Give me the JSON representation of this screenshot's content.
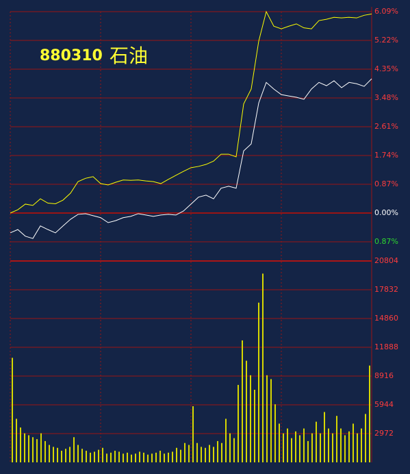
{
  "chart_data": [
    {
      "type": "line",
      "title": "880310",
      "subtitle": "石油",
      "ylim": [
        -0.87,
        6.09
      ],
      "yticks": [
        {
          "value": 6.09,
          "label": "6.09%"
        },
        {
          "value": 5.22,
          "label": "5.22%"
        },
        {
          "value": 4.35,
          "label": "4.35%"
        },
        {
          "value": 3.48,
          "label": "3.48%"
        },
        {
          "value": 2.61,
          "label": "2.61%"
        },
        {
          "value": 1.74,
          "label": "1.74%"
        },
        {
          "value": 0.87,
          "label": "0.87%"
        },
        {
          "value": 0,
          "label": "0.00%"
        },
        {
          "value": -0.87,
          "label": "0.87%"
        }
      ],
      "tick_label_colors": {
        "positive": "#ff3c3c",
        "zero": "#ffffff",
        "negative": "#2ed82e"
      },
      "grid_color": "#9a1414",
      "title_color": "#ffff33",
      "series": [
        {
          "color": "#ffff00",
          "values": [
            0.0,
            0.1,
            0.27,
            0.23,
            0.43,
            0.3,
            0.28,
            0.39,
            0.6,
            0.95,
            1.05,
            1.1,
            0.89,
            0.85,
            0.93,
            1.0,
            0.99,
            1.0,
            0.97,
            0.95,
            0.89,
            1.02,
            1.14,
            1.26,
            1.37,
            1.41,
            1.47,
            1.57,
            1.78,
            1.78,
            1.7,
            3.3,
            3.75,
            5.2,
            6.09,
            5.65,
            5.57,
            5.65,
            5.72,
            5.6,
            5.57,
            5.82,
            5.86,
            5.92,
            5.9,
            5.92,
            5.9,
            5.98,
            6.02
          ]
        },
        {
          "color": "#ffffff",
          "values": [
            -0.6,
            -0.5,
            -0.7,
            -0.77,
            -0.39,
            -0.5,
            -0.6,
            -0.39,
            -0.19,
            -0.04,
            -0.02,
            -0.08,
            -0.14,
            -0.29,
            -0.23,
            -0.14,
            -0.1,
            -0.02,
            -0.06,
            -0.1,
            -0.06,
            -0.04,
            -0.06,
            0.06,
            0.27,
            0.48,
            0.54,
            0.43,
            0.75,
            0.81,
            0.75,
            1.88,
            2.09,
            3.33,
            3.95,
            3.75,
            3.58,
            3.54,
            3.5,
            3.44,
            3.75,
            3.95,
            3.85,
            4.0,
            3.79,
            3.95,
            3.91,
            3.83,
            4.06
          ]
        }
      ]
    },
    {
      "type": "bar",
      "ylim": [
        0,
        20804
      ],
      "yticks": [
        20804,
        17832,
        14860,
        11888,
        8916,
        5944,
        2972
      ],
      "tick_label_colors": {
        "positive": "#ff3c3c",
        "zero": "#ffffff",
        "negative": "#2ed82e"
      },
      "grid_color": "#9a1414",
      "color": "#d8d800",
      "values": [
        10800,
        4500,
        3600,
        3000,
        2800,
        2600,
        2400,
        3000,
        2200,
        1800,
        1600,
        1500,
        1200,
        1400,
        1600,
        2600,
        1800,
        1400,
        1200,
        1000,
        1100,
        1300,
        1500,
        900,
        1000,
        1200,
        1100,
        900,
        1000,
        800,
        900,
        1100,
        1000,
        800,
        900,
        1000,
        1200,
        900,
        1000,
        1100,
        1500,
        1300,
        2000,
        1800,
        5800,
        2000,
        1600,
        1500,
        1800,
        1600,
        2200,
        2000,
        4500,
        3000,
        2500,
        8000,
        12600,
        10500,
        9000,
        7500,
        16500,
        19500,
        9000,
        8600,
        6000,
        4000,
        3000,
        3500,
        2500,
        3200,
        2800,
        3500,
        2200,
        3000,
        4200,
        3000,
        5200,
        3500,
        3000,
        4800,
        3500,
        2800,
        3200,
        4000,
        3000,
        3500,
        5000,
        10000
      ]
    }
  ]
}
